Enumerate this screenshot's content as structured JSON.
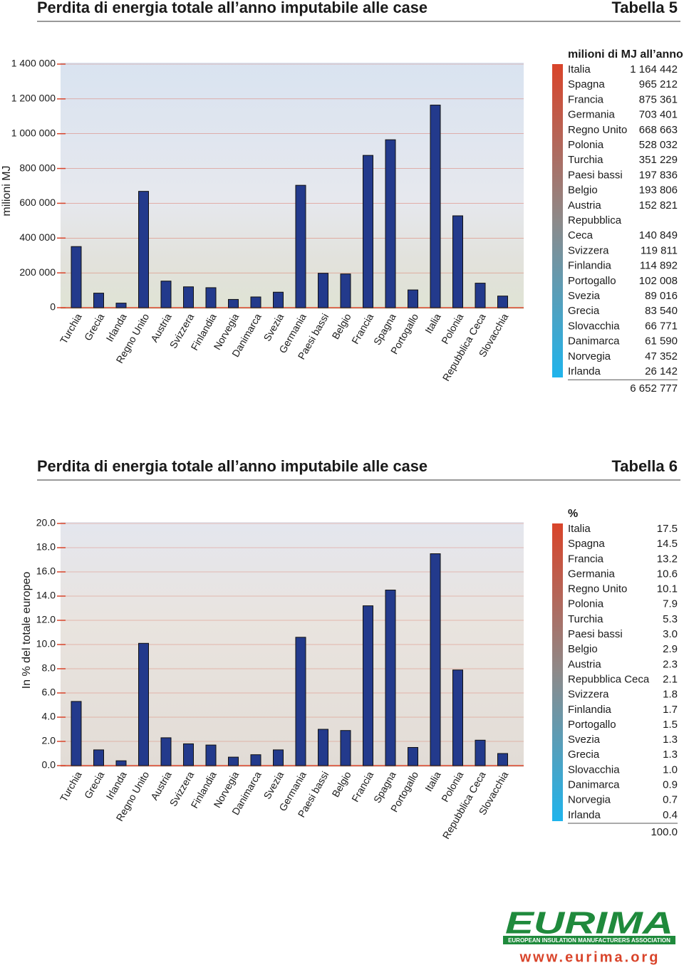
{
  "headings": [
    {
      "title": "Perdita di energia totale all’anno imputabile alle case",
      "label": "Tabella 5"
    },
    {
      "title": "Perdita di energia totale all’anno imputabile alle case",
      "label": "Tabella 6"
    }
  ],
  "chart_data": [
    {
      "type": "bar",
      "y_label": "milioni MJ",
      "categories": [
        "Turchia",
        "Grecia",
        "Irlanda",
        "Regno Unito",
        "Austria",
        "Svizzera",
        "Finlandia",
        "Norvegia",
        "Danimarca",
        "Svezia",
        "Germania",
        "Paesi bassi",
        "Belgio",
        "Francia",
        "Spagna",
        "Portogallo",
        "Italia",
        "Polonia",
        "Repubblica Ceca",
        "Slovacchia"
      ],
      "values": [
        351229,
        83540,
        26142,
        668663,
        152821,
        119811,
        114892,
        47352,
        61590,
        89016,
        703401,
        197836,
        193806,
        875361,
        965212,
        102008,
        1164442,
        528032,
        140849,
        66771
      ],
      "color": "#233a8c",
      "ylim": [
        0,
        1400000
      ],
      "yticks": [
        0,
        {
          "value": 200000,
          "label": "200 000"
        },
        {
          "value": 400000,
          "label": "400 000"
        },
        {
          "value": 600000,
          "label": "600 000"
        },
        {
          "value": 800000,
          "label": "800 000"
        },
        {
          "value": 1000000,
          "label": "1 000 000"
        },
        {
          "value": 1200000,
          "label": "1 200 000"
        },
        {
          "value": 1400000,
          "label": "1 400 000"
        }
      ],
      "grid": true
    },
    {
      "type": "bar",
      "y_label": "In % del totale europeo",
      "categories": [
        "Turchia",
        "Grecia",
        "Irlanda",
        "Regno Unito",
        "Austria",
        "Svizzera",
        "Finlandia",
        "Norvegia",
        "Danimarca",
        "Svezia",
        "Germania",
        "Paesi bassi",
        "Belgio",
        "Francia",
        "Spagna",
        "Portogallo",
        "Italia",
        "Polonia",
        "Repubblica Ceca",
        "Slovacchia"
      ],
      "values": [
        5.3,
        1.3,
        0.4,
        10.1,
        2.3,
        1.8,
        1.7,
        0.7,
        0.9,
        1.3,
        10.6,
        3.0,
        2.9,
        13.2,
        14.5,
        1.5,
        17.5,
        7.9,
        2.1,
        1.0
      ],
      "color": "#233a8c",
      "ylim": [
        0,
        20
      ],
      "yticks": [
        {
          "value": 0,
          "label": "0.0"
        },
        {
          "value": 2,
          "label": "2.0"
        },
        {
          "value": 4,
          "label": "4.0"
        },
        {
          "value": 6,
          "label": "6.0"
        },
        {
          "value": 8,
          "label": "8.0"
        },
        {
          "value": 10,
          "label": "10.0"
        },
        {
          "value": 12,
          "label": "12.0"
        },
        {
          "value": 14,
          "label": "14.0"
        },
        {
          "value": 16,
          "label": "16.0"
        },
        {
          "value": 18,
          "label": "18.0"
        },
        {
          "value": 20,
          "label": "20.0"
        }
      ],
      "grid": true
    }
  ],
  "tables": [
    {
      "header": "milioni di MJ all’anno",
      "rows": [
        [
          "Italia",
          "1 164 442"
        ],
        [
          "Spagna",
          "965 212"
        ],
        [
          "Francia",
          "875 361"
        ],
        [
          "Germania",
          "703 401"
        ],
        [
          "Regno Unito",
          "668 663"
        ],
        [
          "Polonia",
          "528 032"
        ],
        [
          "Turchia",
          "351 229"
        ],
        [
          "Paesi bassi",
          "197 836"
        ],
        [
          "Belgio",
          "193 806"
        ],
        [
          "Austria",
          "152 821"
        ],
        [
          "Repubblica\nCeca",
          "140 849"
        ],
        [
          "Svizzera",
          "119 811"
        ],
        [
          "Finlandia",
          "114 892"
        ],
        [
          "Portogallo",
          "102 008"
        ],
        [
          "Svezia",
          "89 016"
        ],
        [
          "Grecia",
          "83 540"
        ],
        [
          "Slovacchia",
          "66 771"
        ],
        [
          "Danimarca",
          "61 590"
        ],
        [
          "Norvegia",
          "47 352"
        ],
        [
          "Irlanda",
          "26 142"
        ]
      ],
      "total": "6 652 777"
    },
    {
      "header": "%",
      "rows": [
        [
          "Italia",
          "17.5"
        ],
        [
          "Spagna",
          "14.5"
        ],
        [
          "Francia",
          "13.2"
        ],
        [
          "Germania",
          "10.6"
        ],
        [
          "Regno Unito",
          "10.1"
        ],
        [
          "Polonia",
          "7.9"
        ],
        [
          "Turchia",
          "5.3"
        ],
        [
          "Paesi bassi",
          "3.0"
        ],
        [
          "Belgio",
          "2.9"
        ],
        [
          "Austria",
          "2.3"
        ],
        [
          "Repubblica Ceca",
          "2.1"
        ],
        [
          "Svizzera",
          "1.8"
        ],
        [
          "Finlandia",
          "1.7"
        ],
        [
          "Portogallo",
          "1.5"
        ],
        [
          "Svezia",
          "1.3"
        ],
        [
          "Grecia",
          "1.3"
        ],
        [
          "Slovacchia",
          "1.0"
        ],
        [
          "Danimarca",
          "0.9"
        ],
        [
          "Norvegia",
          "0.7"
        ],
        [
          "Irlanda",
          "0.4"
        ]
      ],
      "total": "100.0"
    }
  ],
  "footer": {
    "logo": "EURIMA",
    "association": "EUROPEAN INSULATION MANUFACTURERS ASSOCIATION",
    "url": "www.eurima.org"
  }
}
